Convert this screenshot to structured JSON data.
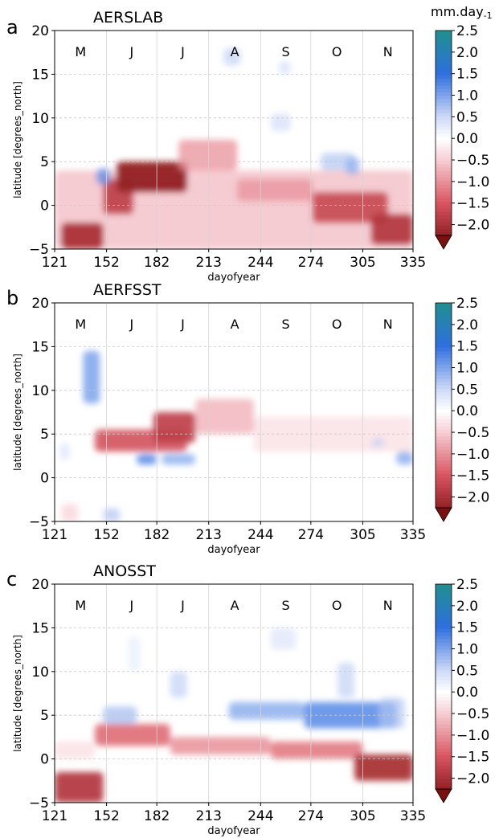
{
  "colorbar": {
    "unit_label": "mm.day-1",
    "ticks": [
      "2.5",
      "2.0",
      "1.5",
      "1.0",
      "0.5",
      "0.0",
      "−0.5",
      "−1.0",
      "−1.5",
      "−2.0"
    ],
    "colors": {
      "strong_positive": "#1f8f8f",
      "positive": "#2f6fe0",
      "weak_positive": "#cfdaf7",
      "neutral": "#ffffff",
      "weak_negative": "#f7cdd3",
      "negative": "#d9535e",
      "strong_negative": "#7a1010"
    }
  },
  "chart_data": [
    {
      "panel_letter": "a",
      "title": "AERSLAB",
      "type": "heatmap",
      "xlabel": "dayofyear",
      "ylabel": "latitude [degrees_north]",
      "xlim": [
        121,
        335
      ],
      "ylim": [
        -5,
        20
      ],
      "x_ticks": [
        121,
        152,
        182,
        213,
        244,
        274,
        305,
        335
      ],
      "y_ticks": [
        -5,
        0,
        5,
        10,
        15,
        20
      ],
      "month_labels": [
        "M",
        "J",
        "J",
        "A",
        "S",
        "O",
        "N"
      ],
      "grid": true,
      "features": [
        {
          "x0": 121,
          "x1": 335,
          "y0": -5,
          "y1": 4,
          "value": -0.7,
          "shape": "band"
        },
        {
          "x0": 125,
          "x1": 150,
          "y0": -5,
          "y1": -2,
          "value": -2.0
        },
        {
          "x0": 150,
          "x1": 168,
          "y0": -1,
          "y1": 3,
          "value": -1.8
        },
        {
          "x0": 158,
          "x1": 200,
          "y0": 1.5,
          "y1": 5,
          "value": -2.2
        },
        {
          "x0": 195,
          "x1": 230,
          "y0": 4,
          "y1": 7.5,
          "value": -1.0
        },
        {
          "x0": 230,
          "x1": 275,
          "y0": 0.5,
          "y1": 3,
          "value": -1.0
        },
        {
          "x0": 275,
          "x1": 320,
          "y0": -2,
          "y1": 1.5,
          "value": -1.7
        },
        {
          "x0": 310,
          "x1": 335,
          "y0": -4.5,
          "y1": -1,
          "value": -1.9
        },
        {
          "x0": 146,
          "x1": 154,
          "y0": 2.4,
          "y1": 4.2,
          "value": 1.2
        },
        {
          "x0": 222,
          "x1": 232,
          "y0": 16,
          "y1": 18,
          "value": 0.6
        },
        {
          "x0": 250,
          "x1": 262,
          "y0": 8.5,
          "y1": 10.5,
          "value": 0.5
        },
        {
          "x0": 280,
          "x1": 300,
          "y0": 4,
          "y1": 6,
          "value": 0.7
        },
        {
          "x0": 295,
          "x1": 303,
          "y0": 3.5,
          "y1": 5.5,
          "value": 0.9
        },
        {
          "x0": 255,
          "x1": 262,
          "y0": 15,
          "y1": 16.5,
          "value": 0.5
        }
      ]
    },
    {
      "panel_letter": "b",
      "title": "AERFSST",
      "type": "heatmap",
      "xlabel": "dayofyear",
      "ylabel": "latitude [degrees_north]",
      "xlim": [
        121,
        335
      ],
      "ylim": [
        -5,
        20
      ],
      "x_ticks": [
        121,
        152,
        182,
        213,
        244,
        274,
        305,
        335
      ],
      "y_ticks": [
        -5,
        0,
        5,
        10,
        15,
        20
      ],
      "month_labels": [
        "M",
        "J",
        "J",
        "A",
        "S",
        "O",
        "N"
      ],
      "grid": true,
      "features": [
        {
          "x0": 145,
          "x1": 200,
          "y0": 3,
          "y1": 5.5,
          "value": -1.6
        },
        {
          "x0": 180,
          "x1": 205,
          "y0": 4,
          "y1": 7.5,
          "value": -1.8
        },
        {
          "x0": 205,
          "x1": 240,
          "y0": 5,
          "y1": 9,
          "value": -0.8
        },
        {
          "x0": 240,
          "x1": 335,
          "y0": 3,
          "y1": 7,
          "value": -0.4
        },
        {
          "x0": 125,
          "x1": 135,
          "y0": -5,
          "y1": -3,
          "value": -0.5
        },
        {
          "x0": 138,
          "x1": 148,
          "y0": 8.5,
          "y1": 14.5,
          "value": 1.1
        },
        {
          "x0": 170,
          "x1": 182,
          "y0": 1.5,
          "y1": 2.7,
          "value": 1.3
        },
        {
          "x0": 185,
          "x1": 205,
          "y0": 1.5,
          "y1": 2.7,
          "value": 1.0
        },
        {
          "x0": 150,
          "x1": 160,
          "y0": -5,
          "y1": -3.5,
          "value": 0.7
        },
        {
          "x0": 124,
          "x1": 130,
          "y0": 2,
          "y1": 4,
          "value": 0.4
        },
        {
          "x0": 325,
          "x1": 335,
          "y0": 1.5,
          "y1": 3,
          "value": 1.0
        },
        {
          "x0": 310,
          "x1": 318,
          "y0": 3.5,
          "y1": 4.5,
          "value": 0.6
        }
      ]
    },
    {
      "panel_letter": "c",
      "title": "ANOSST",
      "type": "heatmap",
      "xlabel": "dayofyear",
      "ylabel": "latitude [degrees_north]",
      "xlim": [
        121,
        335
      ],
      "ylim": [
        -5,
        20
      ],
      "x_ticks": [
        121,
        152,
        182,
        213,
        244,
        274,
        305,
        335
      ],
      "y_ticks": [
        -5,
        0,
        5,
        10,
        15,
        20
      ],
      "month_labels": [
        "M",
        "J",
        "J",
        "A",
        "S",
        "O",
        "N"
      ],
      "grid": true,
      "features": [
        {
          "x0": 121,
          "x1": 150,
          "y0": -5,
          "y1": -1.5,
          "value": -1.9
        },
        {
          "x0": 145,
          "x1": 190,
          "y0": 1.5,
          "y1": 4,
          "value": -1.4
        },
        {
          "x0": 190,
          "x1": 250,
          "y0": 0.5,
          "y1": 2.5,
          "value": -1.1
        },
        {
          "x0": 250,
          "x1": 305,
          "y0": 0,
          "y1": 2,
          "value": -1.3
        },
        {
          "x0": 300,
          "x1": 335,
          "y0": -2.5,
          "y1": 0.5,
          "value": -2.0
        },
        {
          "x0": 121,
          "x1": 145,
          "y0": 0,
          "y1": 2,
          "value": -0.4
        },
        {
          "x0": 150,
          "x1": 170,
          "y0": 4,
          "y1": 6,
          "value": 0.8
        },
        {
          "x0": 190,
          "x1": 200,
          "y0": 7,
          "y1": 10,
          "value": 0.6
        },
        {
          "x0": 225,
          "x1": 270,
          "y0": 4.5,
          "y1": 6.5,
          "value": 1.0
        },
        {
          "x0": 270,
          "x1": 325,
          "y0": 3.5,
          "y1": 6.5,
          "value": 1.3
        },
        {
          "x0": 290,
          "x1": 300,
          "y0": 7,
          "y1": 11,
          "value": 0.6
        },
        {
          "x0": 315,
          "x1": 330,
          "y0": 3.5,
          "y1": 7,
          "value": 0.7
        },
        {
          "x0": 250,
          "x1": 265,
          "y0": 12.5,
          "y1": 15,
          "value": 0.4
        },
        {
          "x0": 165,
          "x1": 172,
          "y0": 10,
          "y1": 14,
          "value": 0.3
        }
      ]
    }
  ]
}
